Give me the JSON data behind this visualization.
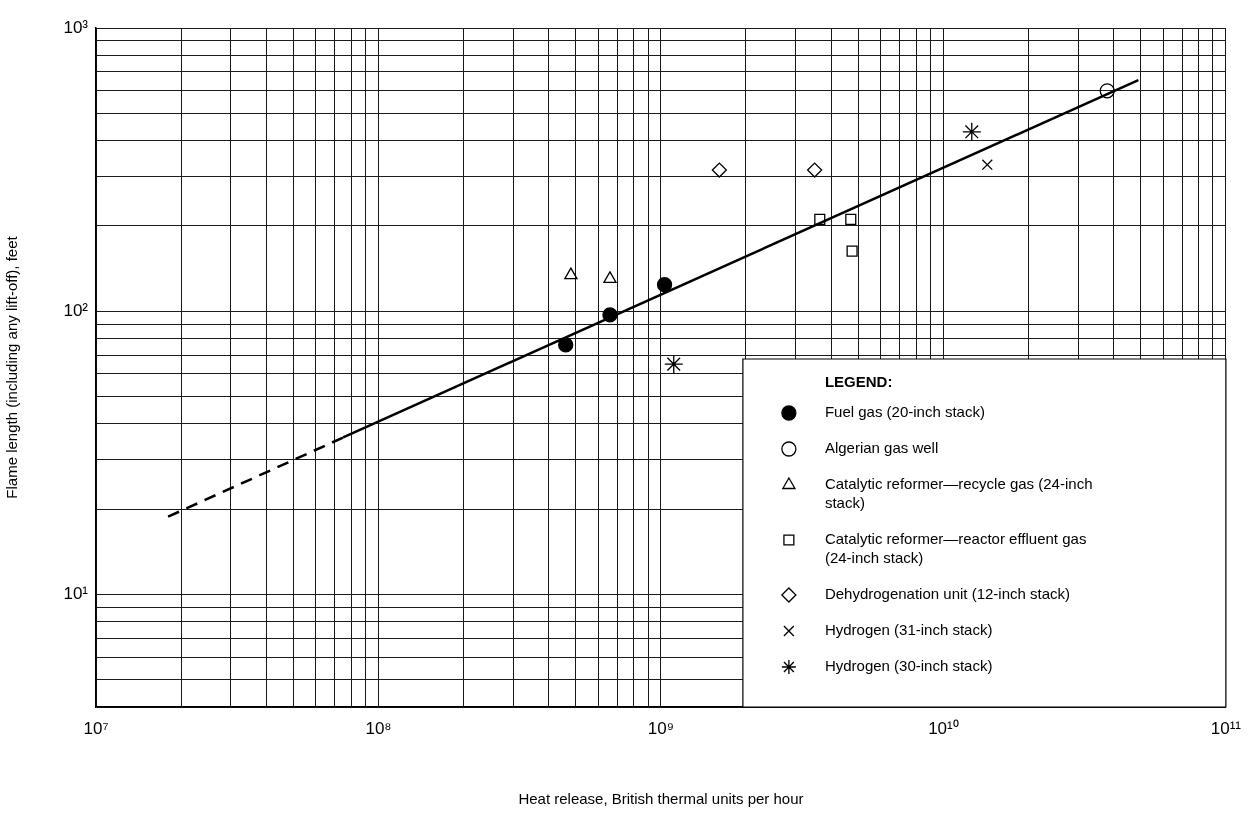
{
  "chart_data": {
    "type": "scatter",
    "xlabel": "Heat release, British thermal units per hour",
    "ylabel": "Flame length (including any lift-off), feet",
    "legend_title": "LEGEND:",
    "log": "xy",
    "grid": true,
    "legend": "bottom right",
    "xlim": [
      10000000,
      100000000000
    ],
    "ylim": [
      4,
      1000
    ],
    "xticks": [
      {
        "value": 10000000,
        "label": "10⁷"
      },
      {
        "value": 20000000,
        "label": null
      },
      {
        "value": 30000000,
        "label": null
      },
      {
        "value": 40000000,
        "label": null
      },
      {
        "value": 50000000,
        "label": null
      },
      {
        "value": 60000000,
        "label": null
      },
      {
        "value": 70000000,
        "label": null
      },
      {
        "value": 80000000,
        "label": null
      },
      {
        "value": 90000000,
        "label": null
      },
      {
        "value": 100000000,
        "label": "10⁸"
      },
      {
        "value": 200000000,
        "label": null
      },
      {
        "value": 300000000,
        "label": null
      },
      {
        "value": 400000000,
        "label": null
      },
      {
        "value": 500000000,
        "label": null
      },
      {
        "value": 600000000,
        "label": null
      },
      {
        "value": 700000000,
        "label": null
      },
      {
        "value": 800000000,
        "label": null
      },
      {
        "value": 900000000,
        "label": null
      },
      {
        "value": 1000000000,
        "label": "10⁹"
      },
      {
        "value": 2000000000,
        "label": null
      },
      {
        "value": 3000000000,
        "label": null
      },
      {
        "value": 4000000000,
        "label": null
      },
      {
        "value": 5000000000,
        "label": null
      },
      {
        "value": 6000000000,
        "label": null
      },
      {
        "value": 7000000000,
        "label": null
      },
      {
        "value": 8000000000,
        "label": null
      },
      {
        "value": 9000000000,
        "label": null
      },
      {
        "value": 10000000000,
        "label": "10¹⁰"
      },
      {
        "value": 20000000000,
        "label": null
      },
      {
        "value": 30000000000,
        "label": null
      },
      {
        "value": 40000000000,
        "label": null
      },
      {
        "value": 50000000000,
        "label": null
      },
      {
        "value": 60000000000,
        "label": null
      },
      {
        "value": 70000000000,
        "label": null
      },
      {
        "value": 80000000000,
        "label": null
      },
      {
        "value": 90000000000,
        "label": null
      },
      {
        "value": 100000000000,
        "label": "10¹¹"
      }
    ],
    "yticks": [
      {
        "value": 4,
        "label": null
      },
      {
        "value": 5,
        "label": null
      },
      {
        "value": 6,
        "label": null
      },
      {
        "value": 7,
        "label": null
      },
      {
        "value": 8,
        "label": null
      },
      {
        "value": 9,
        "label": null
      },
      {
        "value": 10,
        "label": "10¹"
      },
      {
        "value": 20,
        "label": null
      },
      {
        "value": 30,
        "label": null
      },
      {
        "value": 40,
        "label": null
      },
      {
        "value": 50,
        "label": null
      },
      {
        "value": 60,
        "label": null
      },
      {
        "value": 70,
        "label": null
      },
      {
        "value": 80,
        "label": null
      },
      {
        "value": 90,
        "label": null
      },
      {
        "value": 100,
        "label": "10²"
      },
      {
        "value": 200,
        "label": null
      },
      {
        "value": 300,
        "label": null
      },
      {
        "value": 400,
        "label": null
      },
      {
        "value": 500,
        "label": null
      },
      {
        "value": 600,
        "label": null
      },
      {
        "value": 700,
        "label": null
      },
      {
        "value": 800,
        "label": null
      },
      {
        "value": 900,
        "label": null
      },
      {
        "value": 1000,
        "label": "10³"
      }
    ],
    "series": [
      {
        "name": "Fuel gas (20-inch stack)",
        "color": "#000000",
        "marker": "circle",
        "x": [
          460000000,
          660000000,
          1030000000
        ],
        "values": [
          76,
          97,
          124
        ]
      },
      {
        "name": "Algerian gas well",
        "color": "#000000",
        "marker": "circle",
        "x": [
          38000000000
        ],
        "values": [
          600
        ]
      },
      {
        "name": "Catalytic reformer—recycle gas (24-inch stack)",
        "color": "#000000",
        "marker": "triangle",
        "x": [
          480000000,
          660000000
        ],
        "values": [
          134,
          130
        ]
      },
      {
        "name": "Catalytic reformer—reactor effluent gas (24-inch stack)",
        "color": "#000000",
        "marker": "square",
        "x": [
          3650000000,
          4700000000,
          4750000000
        ],
        "values": [
          211,
          211,
          163
        ]
      },
      {
        "name": "Dehydrogenation unit (12-inch stack)",
        "color": "#000000",
        "marker": "diamond",
        "x": [
          1610000000,
          3500000000
        ],
        "values": [
          315,
          315
        ]
      },
      {
        "name": "Hydrogen (31-inch stack)",
        "color": "#000000",
        "marker": "cross",
        "x": [
          14300000000
        ],
        "values": [
          329
        ]
      },
      {
        "name": "Hydrogen (30-inch stack)",
        "color": "#000000",
        "marker": "cross",
        "x": [
          12600000000,
          1110000000
        ],
        "values": [
          430,
          65
        ]
      },
      {
        "type": "line",
        "color": "#000000",
        "line_style": "dashed",
        "marker": "none",
        "x": [
          18000000,
          75000000
        ],
        "values": [
          18.8,
          35.8
        ]
      },
      {
        "type": "line",
        "color": "#000000",
        "line_style": "solid",
        "marker": "none",
        "x": [
          75000000,
          49000000000
        ],
        "values": [
          35.8,
          655
        ]
      }
    ]
  }
}
